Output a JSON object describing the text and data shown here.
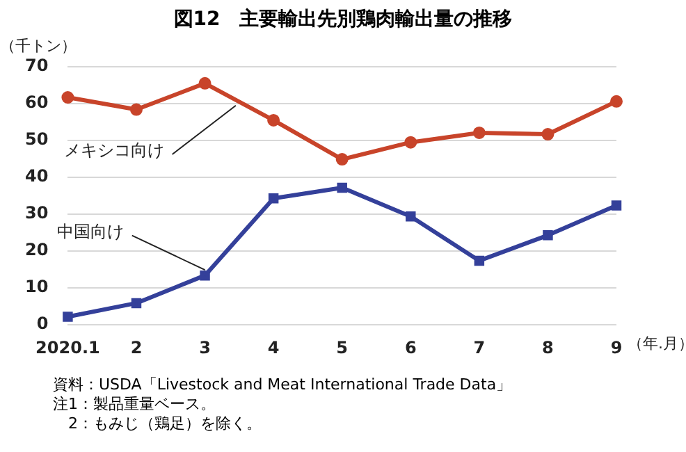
{
  "chart_data": {
    "type": "line",
    "title": "図12　主要輸出先別鶏肉輸出量の推移",
    "ylabel": "（千トン）",
    "xlabel": "（年.月）",
    "categories": [
      "2020.1",
      "2",
      "3",
      "4",
      "5",
      "6",
      "7",
      "8",
      "9"
    ],
    "series": [
      {
        "name": "メキシコ向け",
        "color": "#c8442a",
        "marker": "circle",
        "values": [
          61.7,
          58.4,
          65.5,
          55.5,
          44.9,
          49.5,
          52.1,
          51.7,
          60.6
        ]
      },
      {
        "name": "中国向け",
        "color": "#34409a",
        "marker": "square",
        "values": [
          2.2,
          5.9,
          13.4,
          34.3,
          37.2,
          29.4,
          17.4,
          24.3,
          32.4
        ]
      }
    ],
    "ylim": [
      0,
      70
    ],
    "yticks": [
      0,
      10,
      20,
      30,
      40,
      50,
      60,
      70
    ],
    "grid": "y",
    "legend": false,
    "line_style": "solid",
    "annotations": [
      "資料：USDA「Livestock and Meat International Trade Data」",
      "注1：製品重量ベース。",
      "　2：もみじ（鶏足）を除く。"
    ]
  }
}
